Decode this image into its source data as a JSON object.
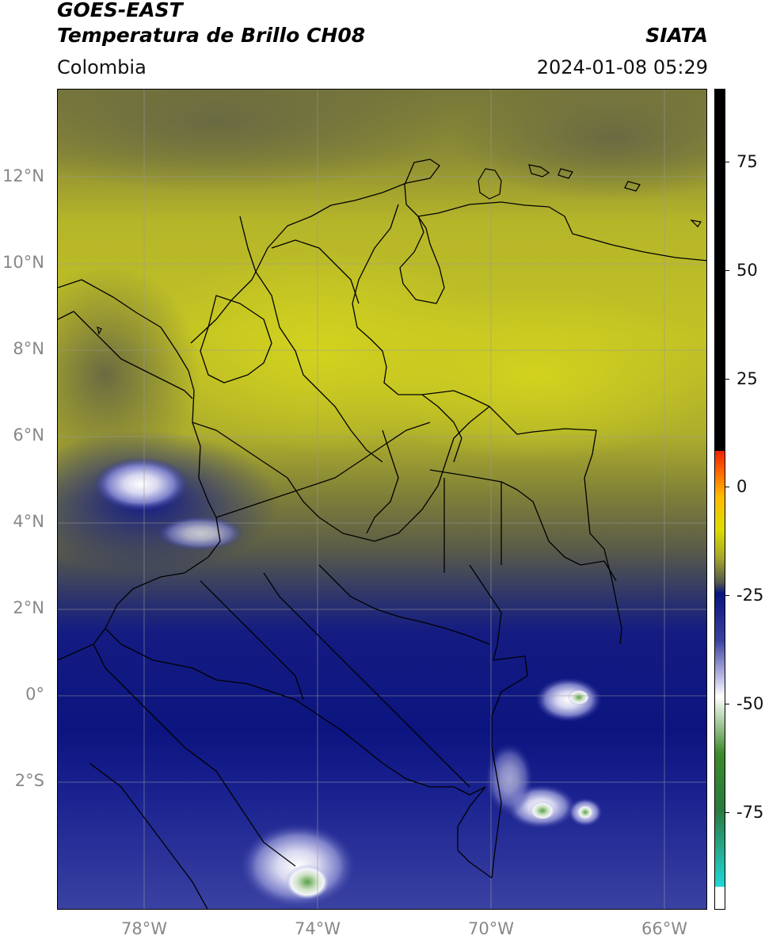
{
  "header": {
    "satellite": "GOES-EAST",
    "product": "Temperatura de Brillo CH08",
    "agency": "SIATA",
    "region": "Colombia",
    "datetime": "2024-01-08 05:29"
  },
  "map": {
    "lat_labels": [
      "12°N",
      "10°N",
      "8°N",
      "6°N",
      "4°N",
      "2°N",
      "0°",
      "2°S"
    ],
    "lon_labels": [
      "78°W",
      "74°W",
      "70°W",
      "66°W"
    ]
  },
  "colorbar": {
    "tick_labels": [
      "75",
      "50",
      "25",
      "0",
      "-25",
      "-50",
      "-75"
    ],
    "colors": {
      "black": "#000000",
      "red": "#ee2200",
      "orange": "#ff9900",
      "yellow": "#dddd00",
      "olive": "#a6a62a",
      "gray": "#55584a",
      "navy": "#0a1480",
      "blue": "#3a40a0",
      "lavender": "#c8c8ea",
      "white": "#ffffff",
      "green": "#3c8a2a",
      "cyan": "#20d8d8"
    }
  }
}
